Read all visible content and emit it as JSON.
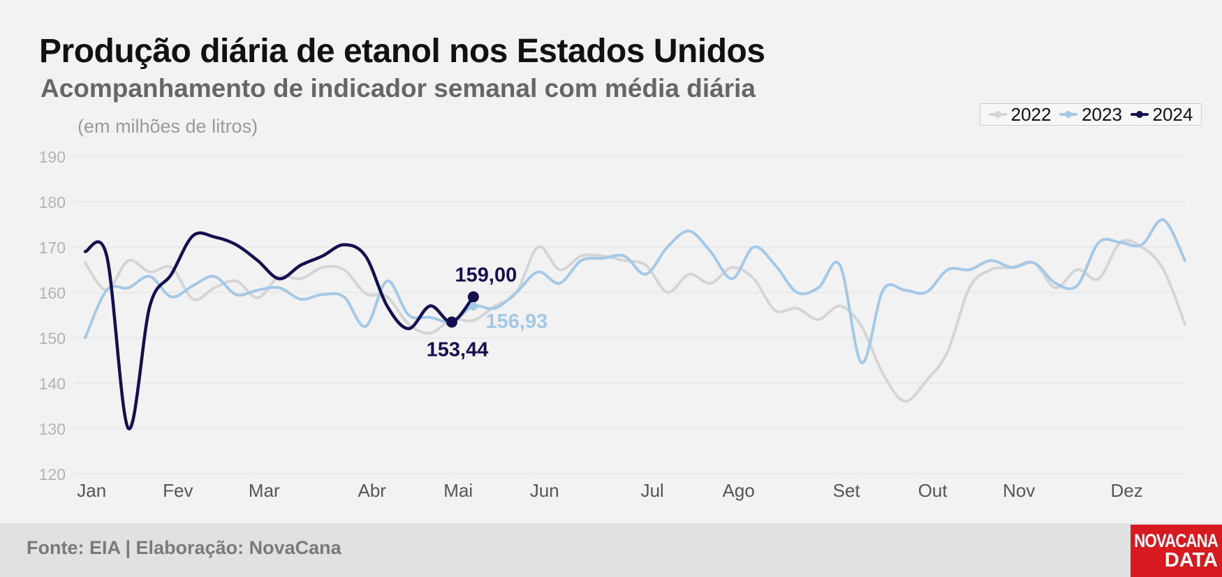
{
  "header": {
    "title": "Produção diária de etanol nos Estados Unidos",
    "subtitle": "Acompanhamento de indicador semanal com média diária",
    "unit": "(em milhões de litros)"
  },
  "footer": {
    "source": "Fonte: EIA | Elaboração: NovaCana",
    "logo_line1": "NOVACANA",
    "logo_line2": "DATA"
  },
  "colors": {
    "2022": "#d5d5d5",
    "2023": "#a3c9e6",
    "2024": "#140f4f",
    "background": "#f2f2f2",
    "gridline": "#e3e3e3",
    "tick_label": "#b3b3b3",
    "month_label": "#555555",
    "logo": "#d71920"
  },
  "chart_data": {
    "type": "line",
    "title": "Produção diária de etanol nos Estados Unidos",
    "ylabel": "(em milhões de litros)",
    "xlabel": "",
    "ylim": [
      120,
      190
    ],
    "yticks": [
      120,
      130,
      140,
      150,
      160,
      170,
      180,
      190
    ],
    "xlim": [
      1,
      52
    ],
    "month_ticks": [
      {
        "label": "Jan",
        "week": 1.3
      },
      {
        "label": "Fev",
        "week": 5.3
      },
      {
        "label": "Mar",
        "week": 9.3
      },
      {
        "label": "Abr",
        "week": 14.3
      },
      {
        "label": "Mai",
        "week": 18.3
      },
      {
        "label": "Jun",
        "week": 22.3
      },
      {
        "label": "Jul",
        "week": 27.3
      },
      {
        "label": "Ago",
        "week": 31.3
      },
      {
        "label": "Set",
        "week": 36.3
      },
      {
        "label": "Out",
        "week": 40.3
      },
      {
        "label": "Nov",
        "week": 44.3
      },
      {
        "label": "Dez",
        "week": 49.3
      }
    ],
    "grid": true,
    "legend_position": "top-right",
    "series": [
      {
        "name": "2022",
        "x": [
          1,
          2,
          3,
          4,
          5,
          6,
          7,
          8,
          9,
          10,
          11,
          12,
          13,
          14,
          15,
          16,
          17,
          18,
          19,
          20,
          21,
          22,
          23,
          24,
          25,
          26,
          27,
          28,
          29,
          30,
          31,
          32,
          33,
          34,
          35,
          36,
          37,
          38,
          39,
          40,
          41,
          42,
          43,
          44,
          45,
          46,
          47,
          48,
          49,
          50,
          51,
          52
        ],
        "values": [
          166.5,
          160.5,
          167,
          164.5,
          165.5,
          158.5,
          161,
          162.5,
          158.8,
          163.5,
          163,
          165.5,
          165,
          159.8,
          159,
          153,
          151,
          154,
          153.8,
          157,
          160,
          170,
          165,
          168,
          168,
          167,
          166,
          160,
          164,
          162,
          165.5,
          163,
          156,
          156.5,
          154,
          157,
          152.5,
          142,
          136,
          140.5,
          147,
          161,
          165,
          165.5,
          166.5,
          161,
          165,
          163,
          171,
          170,
          165,
          153
        ]
      },
      {
        "name": "2023",
        "x": [
          1,
          2,
          3,
          4,
          5,
          6,
          7,
          8,
          9,
          10,
          11,
          12,
          13,
          14,
          15,
          16,
          17,
          18,
          19,
          20,
          21,
          22,
          23,
          24,
          25,
          26,
          27,
          28,
          29,
          30,
          31,
          32,
          33,
          34,
          35,
          36,
          37,
          38,
          39,
          40,
          41,
          42,
          43,
          44,
          45,
          46,
          47,
          48,
          49,
          50,
          51,
          52
        ],
        "values": [
          150,
          160.5,
          161,
          163.5,
          159,
          161.5,
          163.5,
          159.5,
          160.5,
          161,
          158.5,
          159.5,
          159,
          152.5,
          162.5,
          155,
          154.5,
          153.5,
          156.93,
          156.5,
          160,
          164.5,
          162,
          167,
          167.5,
          168,
          164,
          170,
          173.5,
          169,
          163,
          170,
          166,
          160,
          161,
          166,
          144.5,
          160.5,
          160.5,
          160,
          165,
          165,
          167,
          165.5,
          166.5,
          162,
          161.5,
          171,
          171,
          170.5,
          176,
          167
        ]
      },
      {
        "name": "2024",
        "x": [
          1,
          2,
          3,
          4,
          5,
          6,
          7,
          8,
          9,
          10,
          11,
          12,
          13,
          14,
          15,
          16,
          17,
          18,
          19
        ],
        "values": [
          169,
          168,
          130,
          157,
          164,
          172.5,
          172.2,
          170.5,
          167,
          163,
          166,
          168,
          170.5,
          168,
          157,
          152,
          157,
          153.44,
          159
        ]
      }
    ],
    "annotations": [
      {
        "text": "159,00",
        "series": "2024",
        "x": 19,
        "y": 159
      },
      {
        "text": "153,44",
        "series": "2024",
        "x": 18,
        "y": 153.44
      },
      {
        "text": "156,93",
        "series": "2023",
        "x": 19,
        "y": 156.93
      }
    ]
  }
}
